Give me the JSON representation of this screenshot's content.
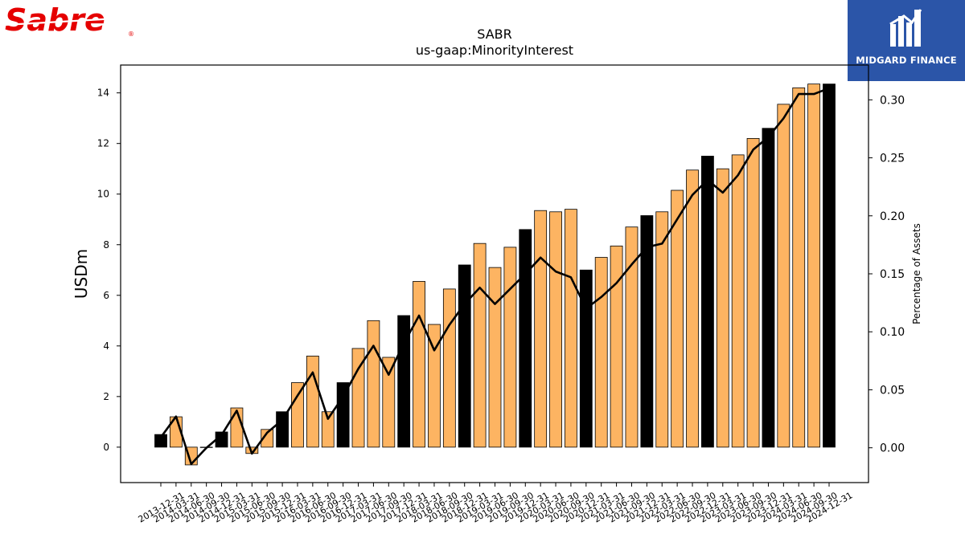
{
  "brand": {
    "left_logo_text": "Sabre",
    "left_logo_color": "#e50000",
    "right_logo_text": "MIDGARD FINANCE",
    "right_logo_bg": "#2b55a8"
  },
  "chart_data": {
    "type": "bar",
    "title": "SABR",
    "subtitle": "us-gaap:MinorityInterest",
    "ylabel": "USDm",
    "y2label": "Percentage of Assets",
    "ylim": [
      -1.4,
      15.1
    ],
    "y2lim": [
      -0.03,
      0.33
    ],
    "yticks": [
      0,
      2,
      4,
      6,
      8,
      10,
      12,
      14
    ],
    "y2ticks": [
      "0.00",
      "0.05",
      "0.10",
      "0.15",
      "0.20",
      "0.25",
      "0.30"
    ],
    "bar_color_quarter": "#fdb462",
    "bar_color_year_end": "#000000",
    "line_color": "#000000",
    "categories": [
      "2013-12-31",
      "2014-03-31",
      "2014-06-30",
      "2014-09-30",
      "2014-12-31",
      "2015-03-31",
      "2015-06-30",
      "2015-09-30",
      "2015-12-31",
      "2016-03-31",
      "2016-06-30",
      "2016-09-30",
      "2016-12-31",
      "2017-03-31",
      "2017-06-30",
      "2017-09-30",
      "2017-12-31",
      "2018-03-31",
      "2018-06-30",
      "2018-09-30",
      "2018-12-31",
      "2019-03-31",
      "2019-06-30",
      "2019-09-30",
      "2019-12-31",
      "2020-03-31",
      "2020-06-30",
      "2020-09-30",
      "2020-12-31",
      "2021-03-31",
      "2021-06-30",
      "2021-09-30",
      "2021-12-31",
      "2022-03-31",
      "2022-06-30",
      "2022-09-30",
      "2022-12-31",
      "2023-03-31",
      "2023-06-30",
      "2023-09-30",
      "2023-12-31",
      "2024-03-31",
      "2024-06-30",
      "2024-09-30",
      "2024-12-31"
    ],
    "series": [
      {
        "kind": "bar",
        "axis": "left",
        "values": [
          0.5,
          1.2,
          -0.7,
          0.0,
          0.6,
          1.55,
          -0.25,
          0.7,
          1.4,
          2.55,
          3.6,
          1.4,
          2.55,
          3.9,
          5.0,
          3.55,
          5.2,
          6.55,
          4.85,
          6.25,
          7.2,
          8.05,
          7.1,
          7.9,
          8.6,
          9.35,
          9.3,
          9.4,
          7.0,
          7.5,
          7.95,
          8.7,
          9.15,
          9.3,
          10.15,
          10.95,
          11.5,
          11.0,
          11.55,
          12.2,
          12.6,
          13.55,
          14.2,
          14.35,
          14.35
        ]
      },
      {
        "kind": "line",
        "axis": "right",
        "values": [
          0.009,
          0.027,
          -0.014,
          0.0,
          0.011,
          0.032,
          -0.005,
          0.013,
          0.024,
          0.045,
          0.065,
          0.025,
          0.044,
          0.068,
          0.088,
          0.063,
          0.09,
          0.114,
          0.084,
          0.106,
          0.124,
          0.138,
          0.124,
          0.137,
          0.15,
          0.164,
          0.152,
          0.147,
          0.12,
          0.13,
          0.142,
          0.158,
          0.173,
          0.176,
          0.197,
          0.218,
          0.231,
          0.22,
          0.235,
          0.257,
          0.268,
          0.284,
          0.305,
          0.305,
          0.31
        ]
      }
    ]
  }
}
